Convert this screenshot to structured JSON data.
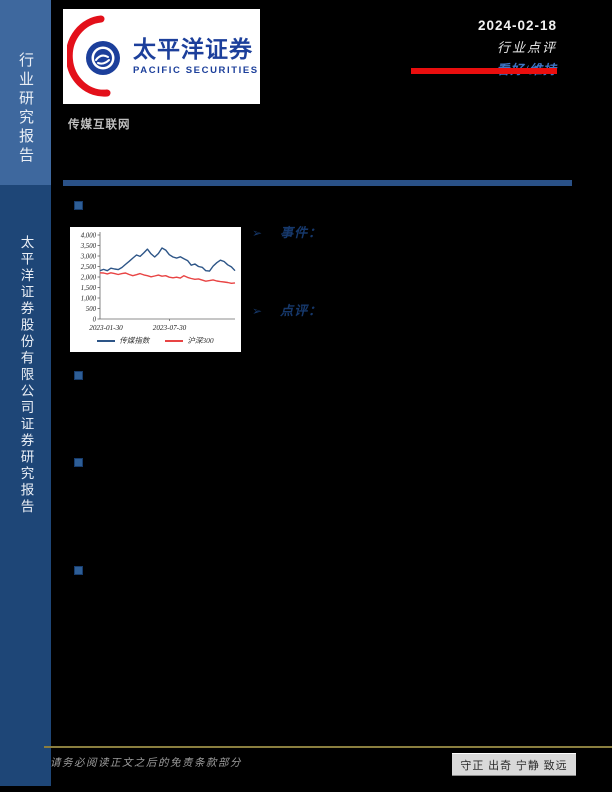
{
  "brand": {
    "logo_cn": "太平洋证券",
    "logo_en": "PACIFIC SECURITIES",
    "logo_red": "#e3101a",
    "logo_blue": "#1c3f9b"
  },
  "sidebar": {
    "top_label": "行业研究报告",
    "bottom_label": "太平洋证券股份有限公司证券研究报告",
    "top_bg": "#3e689e",
    "bottom_bg": "#1e4677"
  },
  "header": {
    "date": "2024-02-18",
    "report_type": "行业点评",
    "rating": "看好/维持",
    "rating_color": "#3f74c4",
    "underline_color": "#e90e0e"
  },
  "sector_label": "传媒互联网",
  "sections": [
    {
      "icon": "➢",
      "label": "事件："
    },
    {
      "icon": "➢",
      "label": "点评："
    }
  ],
  "footer": {
    "disclaimer": "请务必阅读正文之后的免责条款部分",
    "motto": "守正 出奇 宁静 致远"
  },
  "chart_data": {
    "type": "line",
    "title": "",
    "xlabel": "",
    "ylabel": "",
    "ylim": [
      0,
      4000
    ],
    "ytick_labels": [
      "4,000",
      "3,500",
      "3,000",
      "2,500",
      "2,000",
      "1,500",
      "1,000",
      "500",
      "0"
    ],
    "xtick_labels": [
      "2023-01-30",
      "2023-07-30"
    ],
    "grid": false,
    "legend_position": "bottom",
    "series": [
      {
        "name": "传媒指数",
        "color": "#2d5587",
        "values": [
          2300,
          2360,
          2300,
          2420,
          2380,
          2350,
          2450,
          2600,
          2750,
          2900,
          3050,
          2980,
          3150,
          3330,
          3100,
          2950,
          3120,
          3380,
          3280,
          3060,
          2950,
          2900,
          2960,
          2870,
          2780,
          2560,
          2620,
          2500,
          2460,
          2300,
          2280,
          2520,
          2680,
          2800,
          2740,
          2580,
          2480,
          2300
        ]
      },
      {
        "name": "沪深300",
        "color": "#e84444",
        "values": [
          2200,
          2190,
          2150,
          2200,
          2160,
          2120,
          2160,
          2190,
          2120,
          2060,
          2110,
          2160,
          2100,
          2060,
          2010,
          2050,
          2090,
          2040,
          2060,
          1990,
          1960,
          1990,
          1950,
          2060,
          1980,
          1930,
          1890,
          1910,
          1850,
          1800,
          1830,
          1860,
          1810,
          1780,
          1760,
          1740,
          1700,
          1720
        ]
      }
    ]
  }
}
